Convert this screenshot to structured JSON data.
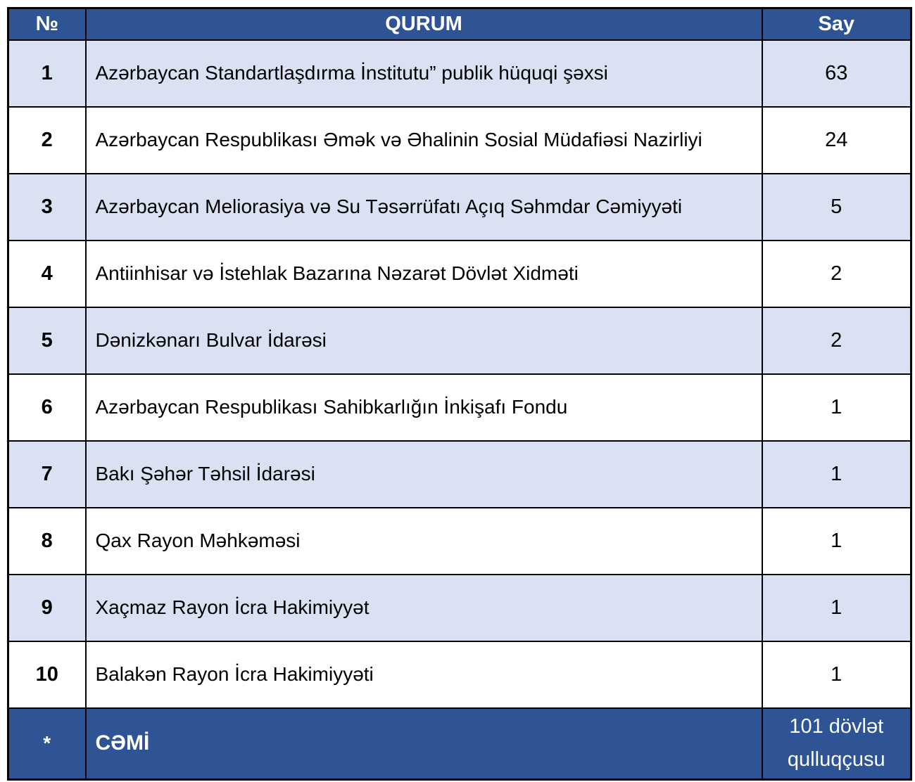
{
  "table": {
    "columns": [
      {
        "key": "no",
        "label": "№"
      },
      {
        "key": "qurum",
        "label": "QURUM"
      },
      {
        "key": "say",
        "label": "Say"
      }
    ],
    "rows": [
      {
        "no": "1",
        "qurum": "Azərbaycan Standartlaşdırma İnstitutu” publik hüquqi şəxsi",
        "say": "63"
      },
      {
        "no": "2",
        "qurum": "Azərbaycan Respublikası Əmək və Əhalinin Sosial Müdafiəsi Nazirliyi",
        "say": "24"
      },
      {
        "no": "3",
        "qurum": "Azərbaycan Meliorasiya və Su Təsərrüfatı Açıq Səhmdar Cəmiyyəti",
        "say": "5"
      },
      {
        "no": "4",
        "qurum": "Antiinhisar və İstehlak Bazarına Nəzarət Dövlət Xidməti",
        "say": "2"
      },
      {
        "no": "5",
        "qurum": "Dənizkənarı Bulvar İdarəsi",
        "say": "2"
      },
      {
        "no": "6",
        "qurum": "Azərbaycan Respublikası Sahibkarlığın İnkişafı Fondu",
        "say": "1"
      },
      {
        "no": "7",
        "qurum": "Bakı Şəhər Təhsil İdarəsi",
        "say": "1"
      },
      {
        "no": "8",
        "qurum": "Qax Rayon Məhkəməsi",
        "say": "1"
      },
      {
        "no": "9",
        "qurum": "Xaçmaz Rayon İcra Hakimiyyət",
        "say": "1"
      },
      {
        "no": "10",
        "qurum": "Balakən Rayon İcra Hakimiyyəti",
        "say": "1"
      }
    ],
    "footer": {
      "no": "*",
      "qurum": "CƏMİ",
      "say": "101 dövlət qulluqçusu"
    },
    "colors": {
      "header_bg": "#2E5496",
      "header_text": "#FFFFFF",
      "row_alt_bg": "#D9E1F2",
      "row_bg": "#FFFFFF",
      "border": "#000000",
      "body_text": "#000000"
    }
  }
}
